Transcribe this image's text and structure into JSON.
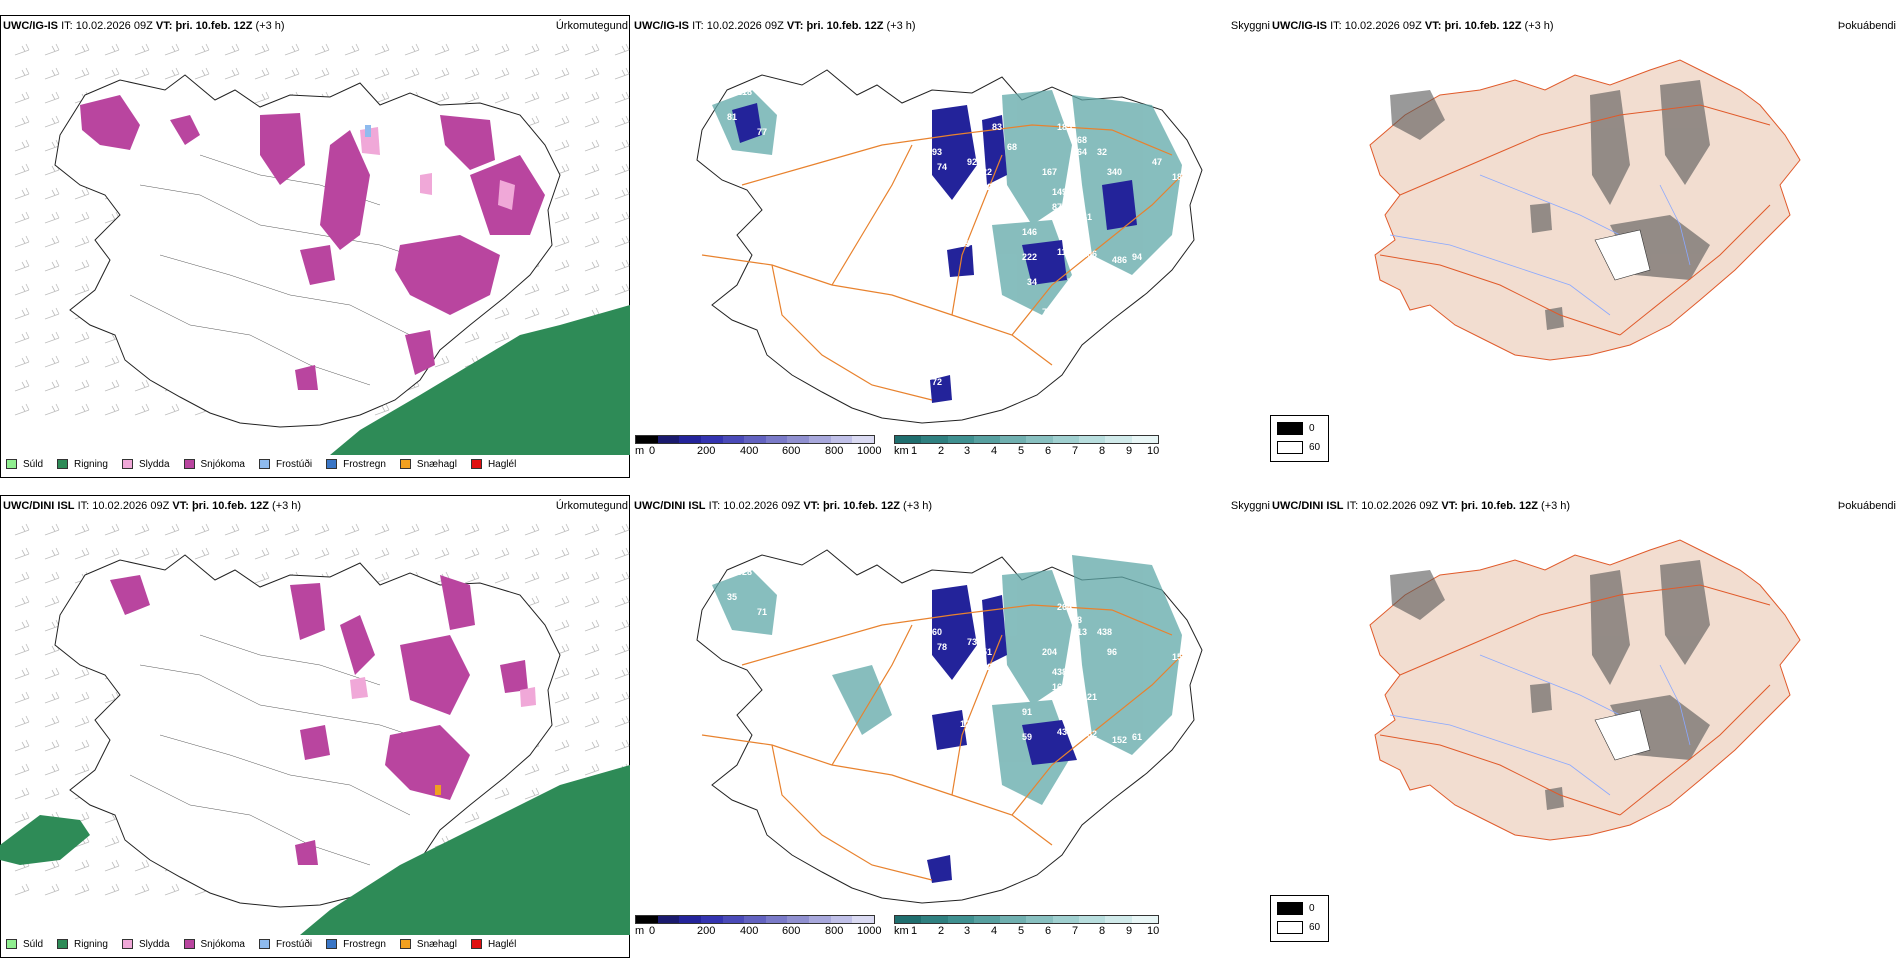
{
  "rows": [
    {
      "precip": {
        "model": "UWC/IG-IS",
        "it_label": "IT:",
        "it_value": "10.02.2026 09Z",
        "vt_label": "VT:",
        "vt_value": "þri. 10.feb. 12Z",
        "offset": "(+3 h)",
        "type_label": "Úrkomutegund"
      },
      "vis": {
        "model": "UWC/IG-IS",
        "it_label": "IT:",
        "it_value": "10.02.2026 09Z",
        "vt_label": "VT:",
        "vt_value": "þri. 10.feb. 12Z",
        "offset": "(+3 h)",
        "type_label": "Skyggni",
        "values": [
          "218",
          "96",
          "81",
          "77",
          "93",
          "74",
          "92",
          "122",
          "12",
          "185",
          "268",
          "164",
          "32",
          "340",
          "183",
          "167",
          "149",
          "87",
          "41",
          "146",
          "78",
          "85",
          "222",
          "119",
          "106",
          "486",
          "94",
          "82",
          "47",
          "73",
          "30",
          "75",
          "286",
          "72",
          "47",
          "68",
          "83",
          "34"
        ]
      },
      "fog": {
        "model": "UWC/IG-IS",
        "it_label": "IT:",
        "it_value": "10.02.2026 09Z",
        "vt_label": "VT:",
        "vt_value": "þri. 10.feb. 12Z",
        "offset": "(+3 h)",
        "type_label": "Þokuábendi",
        "legend_0": "0",
        "legend_60": "60"
      }
    },
    {
      "precip": {
        "model": "UWC/DINI ISL",
        "it_label": "IT:",
        "it_value": "10.02.2026 09Z",
        "vt_label": "VT:",
        "vt_value": "þri. 10.feb. 12Z",
        "offset": "(+3 h)",
        "type_label": "Úrkomutegund"
      },
      "vis": {
        "model": "UWC/DINI ISL",
        "it_label": "IT:",
        "it_value": "10.02.2026 09Z",
        "vt_label": "VT:",
        "vt_value": "þri. 10.feb. 12Z",
        "offset": "(+3 h)",
        "type_label": "Skyggni",
        "values": [
          "328",
          "99",
          "35",
          "71",
          "60",
          "78",
          "73",
          "251",
          "423",
          "264",
          "18",
          "913",
          "438",
          "96",
          "15",
          "204",
          "438",
          "160",
          "121",
          "91",
          "77",
          "12",
          "59",
          "435",
          "452",
          "152",
          "61"
        ]
      },
      "fog": {
        "model": "UWC/DINI ISL",
        "it_label": "IT:",
        "it_value": "10.02.2026 09Z",
        "vt_label": "VT:",
        "vt_value": "þri. 10.feb. 12Z",
        "offset": "(+3 h)",
        "type_label": "Þokuábendi",
        "legend_0": "0",
        "legend_60": "60"
      }
    }
  ],
  "precip_legend": [
    {
      "label": "Súld",
      "color": "#90ee90"
    },
    {
      "label": "Rigning",
      "color": "#2e8b57"
    },
    {
      "label": "Slydda",
      "color": "#f0a8d8"
    },
    {
      "label": "Snjókoma",
      "color": "#b9459f"
    },
    {
      "label": "Frostúði",
      "color": "#8fbbee"
    },
    {
      "label": "Frostregn",
      "color": "#3a76c6"
    },
    {
      "label": "Snæhagl",
      "color": "#f0a020"
    },
    {
      "label": "Haglél",
      "color": "#e01010"
    }
  ],
  "ceiling_scale": {
    "unit": "m",
    "ticks": [
      "0",
      "200",
      "400",
      "600",
      "800",
      "1000"
    ],
    "colors": [
      "#000000",
      "#1a1a6e",
      "#23239a",
      "#3434b0",
      "#4a4ab8",
      "#6262c0",
      "#7a7ac8",
      "#9090d0",
      "#a8a8dc",
      "#c0c0e8",
      "#dadaf2"
    ]
  },
  "visibility_scale": {
    "unit": "km",
    "ticks": [
      "1",
      "2",
      "3",
      "4",
      "5",
      "6",
      "7",
      "8",
      "9",
      "10"
    ],
    "colors": [
      "#1f6e6e",
      "#2f8080",
      "#3f9090",
      "#57a0a0",
      "#70b0b0",
      "#88c0c0",
      "#a0d0d0",
      "#b8dede",
      "#d0eaea",
      "#e8f6f6"
    ]
  }
}
